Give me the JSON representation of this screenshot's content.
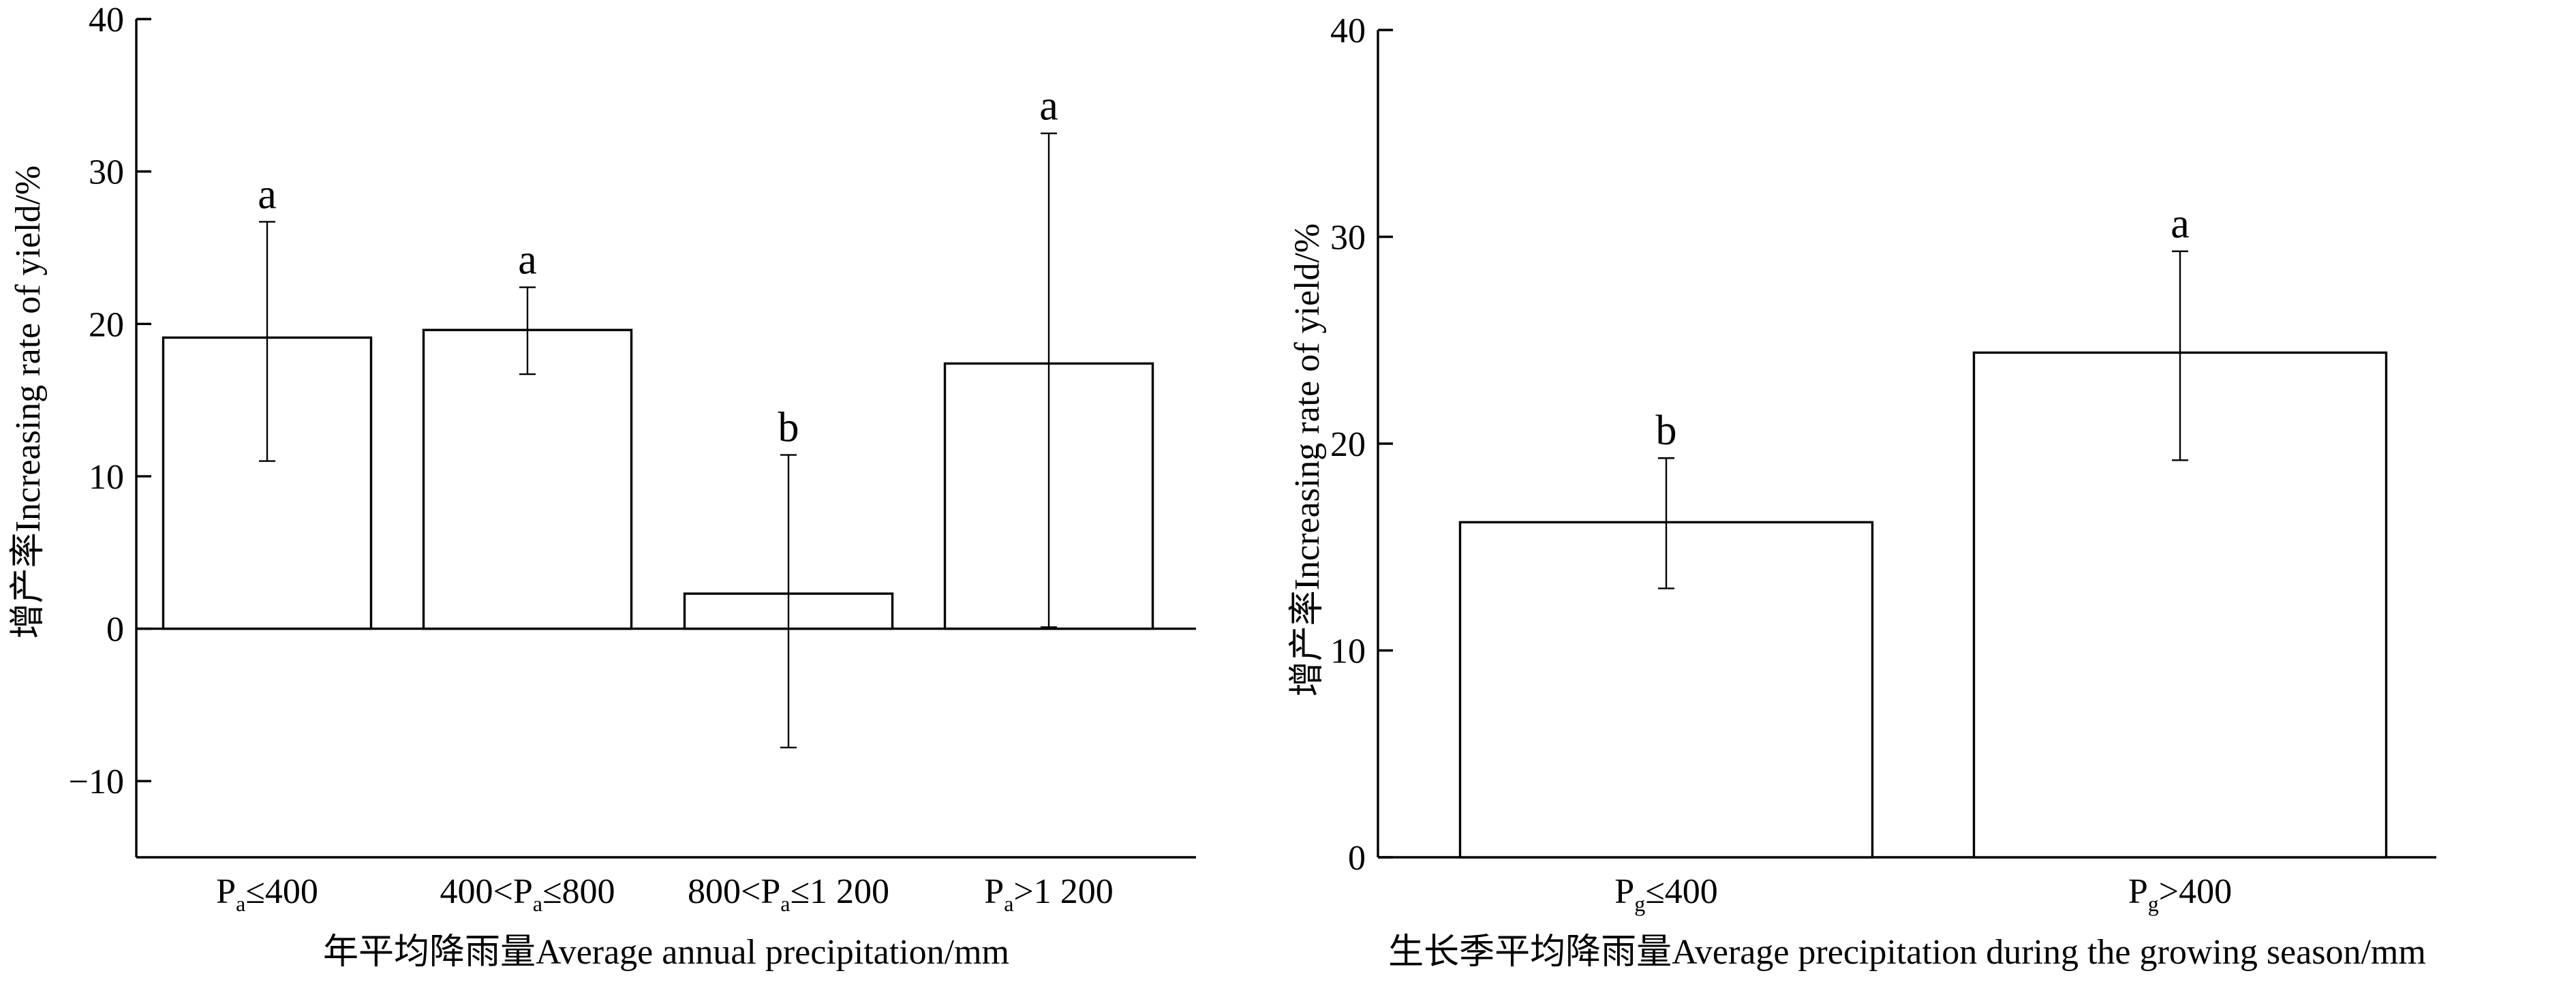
{
  "chart_data": [
    {
      "type": "bar",
      "categories": [
        "P_a≤400",
        "400<P_a≤800",
        "800<P_a≤1 200",
        "P_a>1 200"
      ],
      "category_labels": [
        {
          "base": "P",
          "sub": "a",
          "rest": "≤400"
        },
        {
          "prefix": "400<",
          "base": "P",
          "sub": "a",
          "rest": "≤800"
        },
        {
          "prefix": "800<",
          "base": "P",
          "sub": "a",
          "rest": "≤1 200"
        },
        {
          "base": "P",
          "sub": "a",
          "rest": ">1 200"
        }
      ],
      "values": [
        19.1,
        19.6,
        2.3,
        17.4
      ],
      "error_low": [
        11.0,
        16.7,
        -7.8,
        0.1
      ],
      "error_high": [
        26.7,
        22.4,
        11.4,
        32.5
      ],
      "significance": [
        "a",
        "a",
        "b",
        "a"
      ],
      "xlabel": "年平均降雨量Average annual precipitation/mm",
      "ylabel": "增产率Increasing rate of yield/%",
      "ylim": [
        -15,
        40
      ],
      "yticks": [
        -10,
        0,
        10,
        20,
        30,
        40
      ],
      "ytick_labels": [
        "−10",
        "0",
        "10",
        "20",
        "30",
        "40"
      ],
      "zero_line": true,
      "grid": false
    },
    {
      "type": "bar",
      "categories": [
        "P_g≤400",
        "P_g>400"
      ],
      "category_labels": [
        {
          "base": "P",
          "sub": "g",
          "rest": "≤400"
        },
        {
          "base": "P",
          "sub": "g",
          "rest": ">400"
        }
      ],
      "values": [
        16.2,
        24.4
      ],
      "error_low": [
        13.0,
        19.2
      ],
      "error_high": [
        19.3,
        29.3
      ],
      "significance": [
        "b",
        "a"
      ],
      "xlabel": "生长季平均降雨量Average precipitation during the growing season/mm",
      "ylabel": "增产率Increasing rate of yield/%",
      "ylim": [
        0,
        40
      ],
      "yticks": [
        0,
        10,
        20,
        30,
        40
      ],
      "ytick_labels": [
        "0",
        "10",
        "20",
        "30",
        "40"
      ],
      "grid": false
    }
  ]
}
